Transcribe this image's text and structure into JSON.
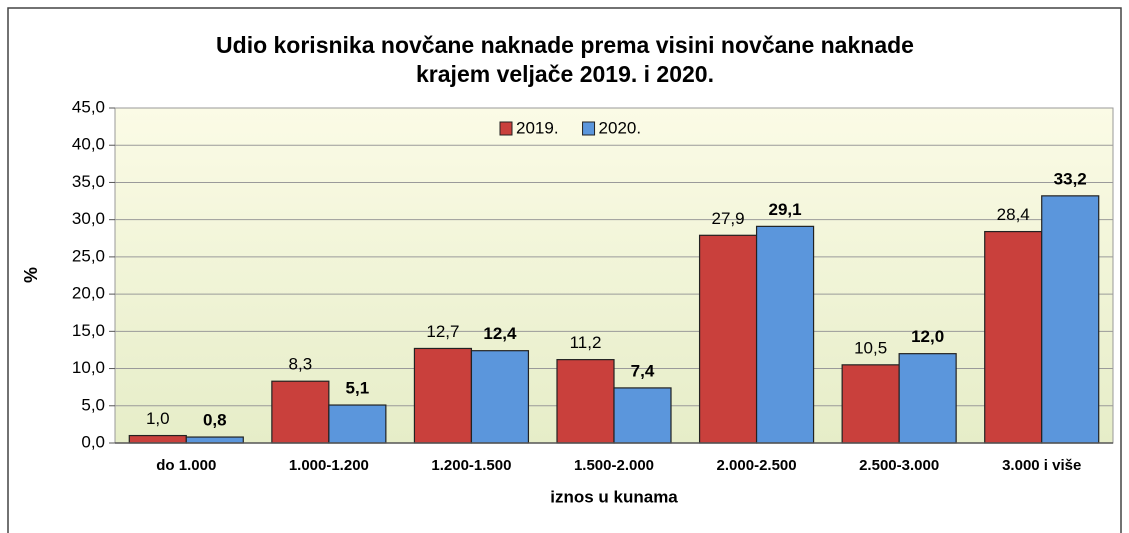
{
  "chart_data": {
    "type": "bar",
    "title": "Udio korisnika novčane naknade prema visini novčane naknade",
    "subtitle": "krajem veljače 2019. i 2020.",
    "ylabel": "%",
    "xlabel": "iznos u kunama",
    "categories": [
      "do 1.000",
      "1.000-1.200",
      "1.200-1.500",
      "1.500-2.000",
      "2.000-2.500",
      "2.500-3.000",
      "3.000 i više"
    ],
    "series": [
      {
        "name": "2019.",
        "color": "#c9403c",
        "values": [
          1.0,
          8.3,
          12.7,
          11.2,
          27.9,
          10.5,
          28.4
        ],
        "value_labels": [
          "1,0",
          "8,3",
          "12,7",
          "11,2",
          "27,9",
          "10,5",
          "28,4"
        ]
      },
      {
        "name": "2020.",
        "color": "#5b96dc",
        "values": [
          0.8,
          5.1,
          12.4,
          7.4,
          29.1,
          12.0,
          33.2
        ],
        "value_labels": [
          "0,8",
          "5,1",
          "12,4",
          "7,4",
          "29,1",
          "12,0",
          "33,2"
        ]
      }
    ],
    "ylim": [
      0,
      45
    ],
    "yticks": [
      {
        "value": 0,
        "label": "0,0"
      },
      {
        "value": 5,
        "label": "5,0"
      },
      {
        "value": 10,
        "label": "10,0"
      },
      {
        "value": 15,
        "label": "15,0"
      },
      {
        "value": 20,
        "label": "20,0"
      },
      {
        "value": 25,
        "label": "25,0"
      },
      {
        "value": 30,
        "label": "30,0"
      },
      {
        "value": 35,
        "label": "35,0"
      },
      {
        "value": 40,
        "label": "40,0"
      },
      {
        "value": 45,
        "label": "45,0"
      }
    ],
    "legend": "top"
  }
}
